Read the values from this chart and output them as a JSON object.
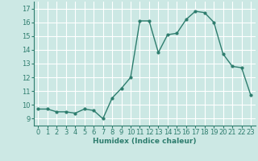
{
  "x": [
    0,
    1,
    2,
    3,
    4,
    5,
    6,
    7,
    8,
    9,
    10,
    11,
    12,
    13,
    14,
    15,
    16,
    17,
    18,
    19,
    20,
    21,
    22,
    23
  ],
  "y": [
    9.7,
    9.7,
    9.5,
    9.5,
    9.4,
    9.7,
    9.6,
    9.0,
    10.5,
    11.2,
    12.0,
    16.1,
    16.1,
    13.8,
    15.1,
    15.2,
    16.2,
    16.8,
    16.7,
    16.0,
    13.7,
    12.8,
    12.7,
    10.7
  ],
  "xlabel": "Humidex (Indice chaleur)",
  "line_color": "#2e7d6e",
  "bg_color": "#cce8e4",
  "grid_color": "#ffffff",
  "ylim": [
    8.5,
    17.5
  ],
  "xlim": [
    -0.5,
    23.5
  ],
  "yticks": [
    9,
    10,
    11,
    12,
    13,
    14,
    15,
    16,
    17
  ],
  "xticks": [
    0,
    1,
    2,
    3,
    4,
    5,
    6,
    7,
    8,
    9,
    10,
    11,
    12,
    13,
    14,
    15,
    16,
    17,
    18,
    19,
    20,
    21,
    22,
    23
  ],
  "tick_color": "#2e7d6e",
  "label_fontsize": 6.0,
  "xlabel_fontsize": 6.5
}
